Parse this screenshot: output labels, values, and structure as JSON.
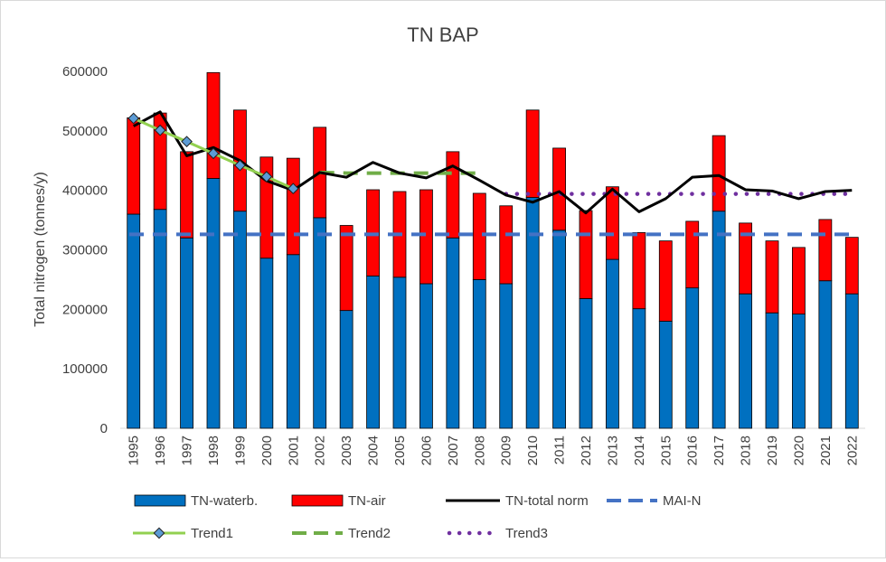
{
  "chart_data": {
    "type": "bar",
    "title": "TN BAP",
    "ylabel": "Total nitrogen (tonnes/y)",
    "xlabel": "",
    "ylim": [
      0,
      600000
    ],
    "yticks": [
      0,
      100000,
      200000,
      300000,
      400000,
      500000,
      600000
    ],
    "ytick_labels": [
      "0",
      "100000",
      "200000",
      "300000",
      "400000",
      "500000",
      "600000"
    ],
    "stacked": true,
    "grid": false,
    "legend_position": "bottom",
    "categories": [
      "1995",
      "1996",
      "1997",
      "1998",
      "1999",
      "2000",
      "2001",
      "2002",
      "2003",
      "2004",
      "2005",
      "2006",
      "2007",
      "2008",
      "2009",
      "2010",
      "2011",
      "2012",
      "2013",
      "2014",
      "2015",
      "2016",
      "2017",
      "2018",
      "2019",
      "2020",
      "2021",
      "2022"
    ],
    "bar_series": [
      {
        "name": "TN-waterb.",
        "color": "#0070c0",
        "values": [
          360000,
          368000,
          320000,
          420000,
          365000,
          286000,
          292000,
          354000,
          198000,
          256000,
          254000,
          243000,
          320000,
          250000,
          243000,
          388000,
          333000,
          218000,
          284000,
          201000,
          180000,
          236000,
          365000,
          226000,
          194000,
          192000,
          248000,
          226000
        ]
      },
      {
        "name": "TN-air",
        "color": "#ff0000",
        "values": [
          162000,
          162000,
          145000,
          178000,
          170000,
          170000,
          162000,
          152000,
          143000,
          145000,
          144000,
          158000,
          145000,
          145000,
          131000,
          147000,
          138000,
          148000,
          122000,
          128000,
          135000,
          112000,
          127000,
          119000,
          121000,
          112000,
          103000,
          95000
        ]
      }
    ],
    "line_series": [
      {
        "name": "TN-total norm",
        "color": "#000000",
        "style": "solid",
        "x": [
          "1995",
          "1996",
          "1997",
          "1998",
          "1999",
          "2000",
          "2001",
          "2002",
          "2003",
          "2004",
          "2005",
          "2006",
          "2007",
          "2008",
          "2009",
          "2010",
          "2011",
          "2012",
          "2013",
          "2014",
          "2015",
          "2016",
          "2017",
          "2018",
          "2019",
          "2020",
          "2021",
          "2022"
        ],
        "values": [
          508000,
          532000,
          458000,
          472000,
          450000,
          416000,
          400000,
          430000,
          422000,
          447000,
          429000,
          421000,
          441000,
          417000,
          392000,
          380000,
          398000,
          362000,
          402000,
          364000,
          386000,
          422000,
          425000,
          401000,
          399000,
          386000,
          398000,
          400000
        ]
      },
      {
        "name": "MAI-N",
        "color": "#4472c4",
        "style": "dashed",
        "x": [
          "1995",
          "2022"
        ],
        "values": [
          326000,
          326000
        ]
      },
      {
        "name": "Trend1",
        "color": "#92d050",
        "style": "solid-markers",
        "marker_color": "#5b9bd5",
        "x": [
          "1995",
          "1996",
          "1997",
          "1998",
          "1999",
          "2000",
          "2001"
        ],
        "values": [
          521000,
          501000,
          482000,
          462000,
          442000,
          423000,
          403000
        ]
      },
      {
        "name": "Trend2",
        "color": "#70ad47",
        "style": "dashed",
        "x": [
          "2002",
          "2003",
          "2004",
          "2005",
          "2006",
          "2007",
          "2008"
        ],
        "values": [
          430000,
          429000,
          429000,
          429000,
          429000,
          429000,
          429000
        ]
      },
      {
        "name": "Trend3",
        "color": "#7030a0",
        "style": "dotted",
        "x": [
          "2009",
          "2010",
          "2011",
          "2012",
          "2013",
          "2014",
          "2015",
          "2016",
          "2017",
          "2018",
          "2019",
          "2020",
          "2021",
          "2022"
        ],
        "values": [
          394000,
          394000,
          394000,
          394000,
          394000,
          394000,
          394000,
          394000,
          394000,
          394000,
          394000,
          394000,
          394000,
          394000
        ]
      }
    ],
    "legend": [
      "TN-waterb.",
      "TN-air",
      "TN-total norm",
      "MAI-N",
      "Trend1",
      "Trend2",
      "Trend3"
    ]
  }
}
